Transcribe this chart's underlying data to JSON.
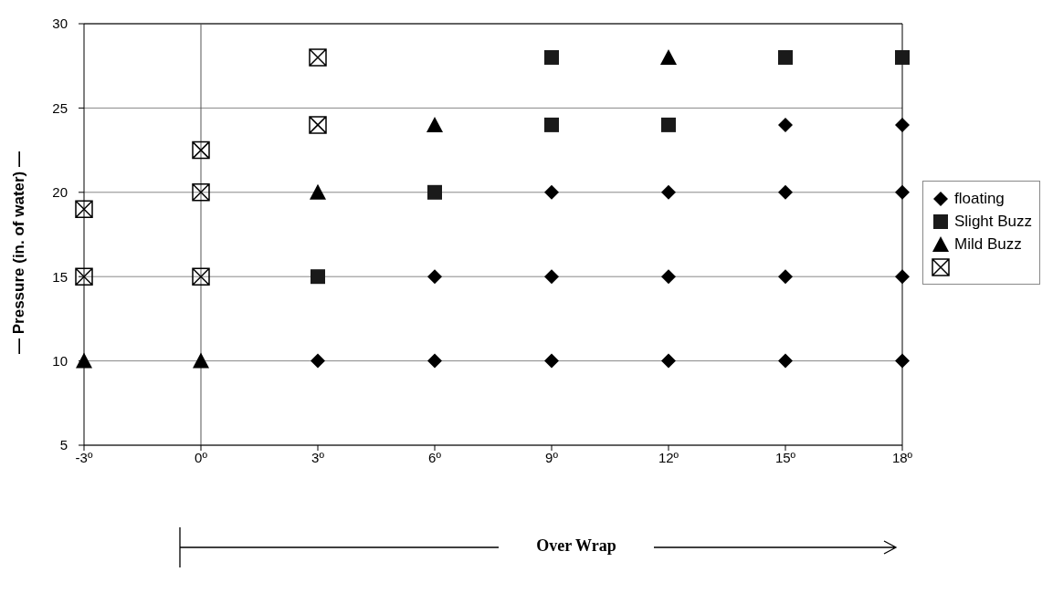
{
  "chart_data": {
    "type": "scatter",
    "xlabel": "Over Wrap",
    "ylabel": "— Pressure (in. of water) —",
    "xlim": [
      -3,
      18
    ],
    "ylim": [
      5,
      30
    ],
    "xticks": [
      {
        "value": -3,
        "label": "-3º"
      },
      {
        "value": 0,
        "label": "0º"
      },
      {
        "value": 3,
        "label": "3º"
      },
      {
        "value": 6,
        "label": "6º"
      },
      {
        "value": 9,
        "label": "9º"
      },
      {
        "value": 12,
        "label": "12º"
      },
      {
        "value": 15,
        "label": "15º"
      },
      {
        "value": 18,
        "label": "18º"
      }
    ],
    "yticks": [
      5,
      10,
      15,
      20,
      25,
      30
    ],
    "grid": "y",
    "legend": "right",
    "ref_lines": [
      {
        "axis": "x",
        "value": 0
      }
    ],
    "series": [
      {
        "name": "floating",
        "color": "#000000",
        "marker": "diamond",
        "x": [
          3,
          6,
          9,
          12,
          15,
          18,
          6,
          9,
          12,
          15,
          18,
          9,
          12,
          15,
          18,
          15,
          18
        ],
        "values": [
          10,
          10,
          10,
          10,
          10,
          10,
          15,
          15,
          15,
          15,
          15,
          20,
          20,
          20,
          20,
          24,
          24
        ]
      },
      {
        "name": "Slight Buzz",
        "color": "#1a1a1a",
        "marker": "square",
        "x": [
          3,
          6,
          9,
          12,
          9,
          15,
          18
        ],
        "values": [
          15,
          20,
          24,
          24,
          28,
          28,
          28
        ]
      },
      {
        "name": "Mild Buzz",
        "color": "#000000",
        "marker": "triangle",
        "x": [
          -3,
          0,
          3,
          6,
          12
        ],
        "values": [
          10,
          10,
          20,
          24,
          28
        ]
      },
      {
        "color": "#000000",
        "marker": "cross",
        "x": [
          -3,
          -3,
          0,
          0,
          0,
          3,
          3
        ],
        "values": [
          15,
          19,
          15,
          20,
          22.5,
          24,
          28
        ]
      }
    ]
  }
}
